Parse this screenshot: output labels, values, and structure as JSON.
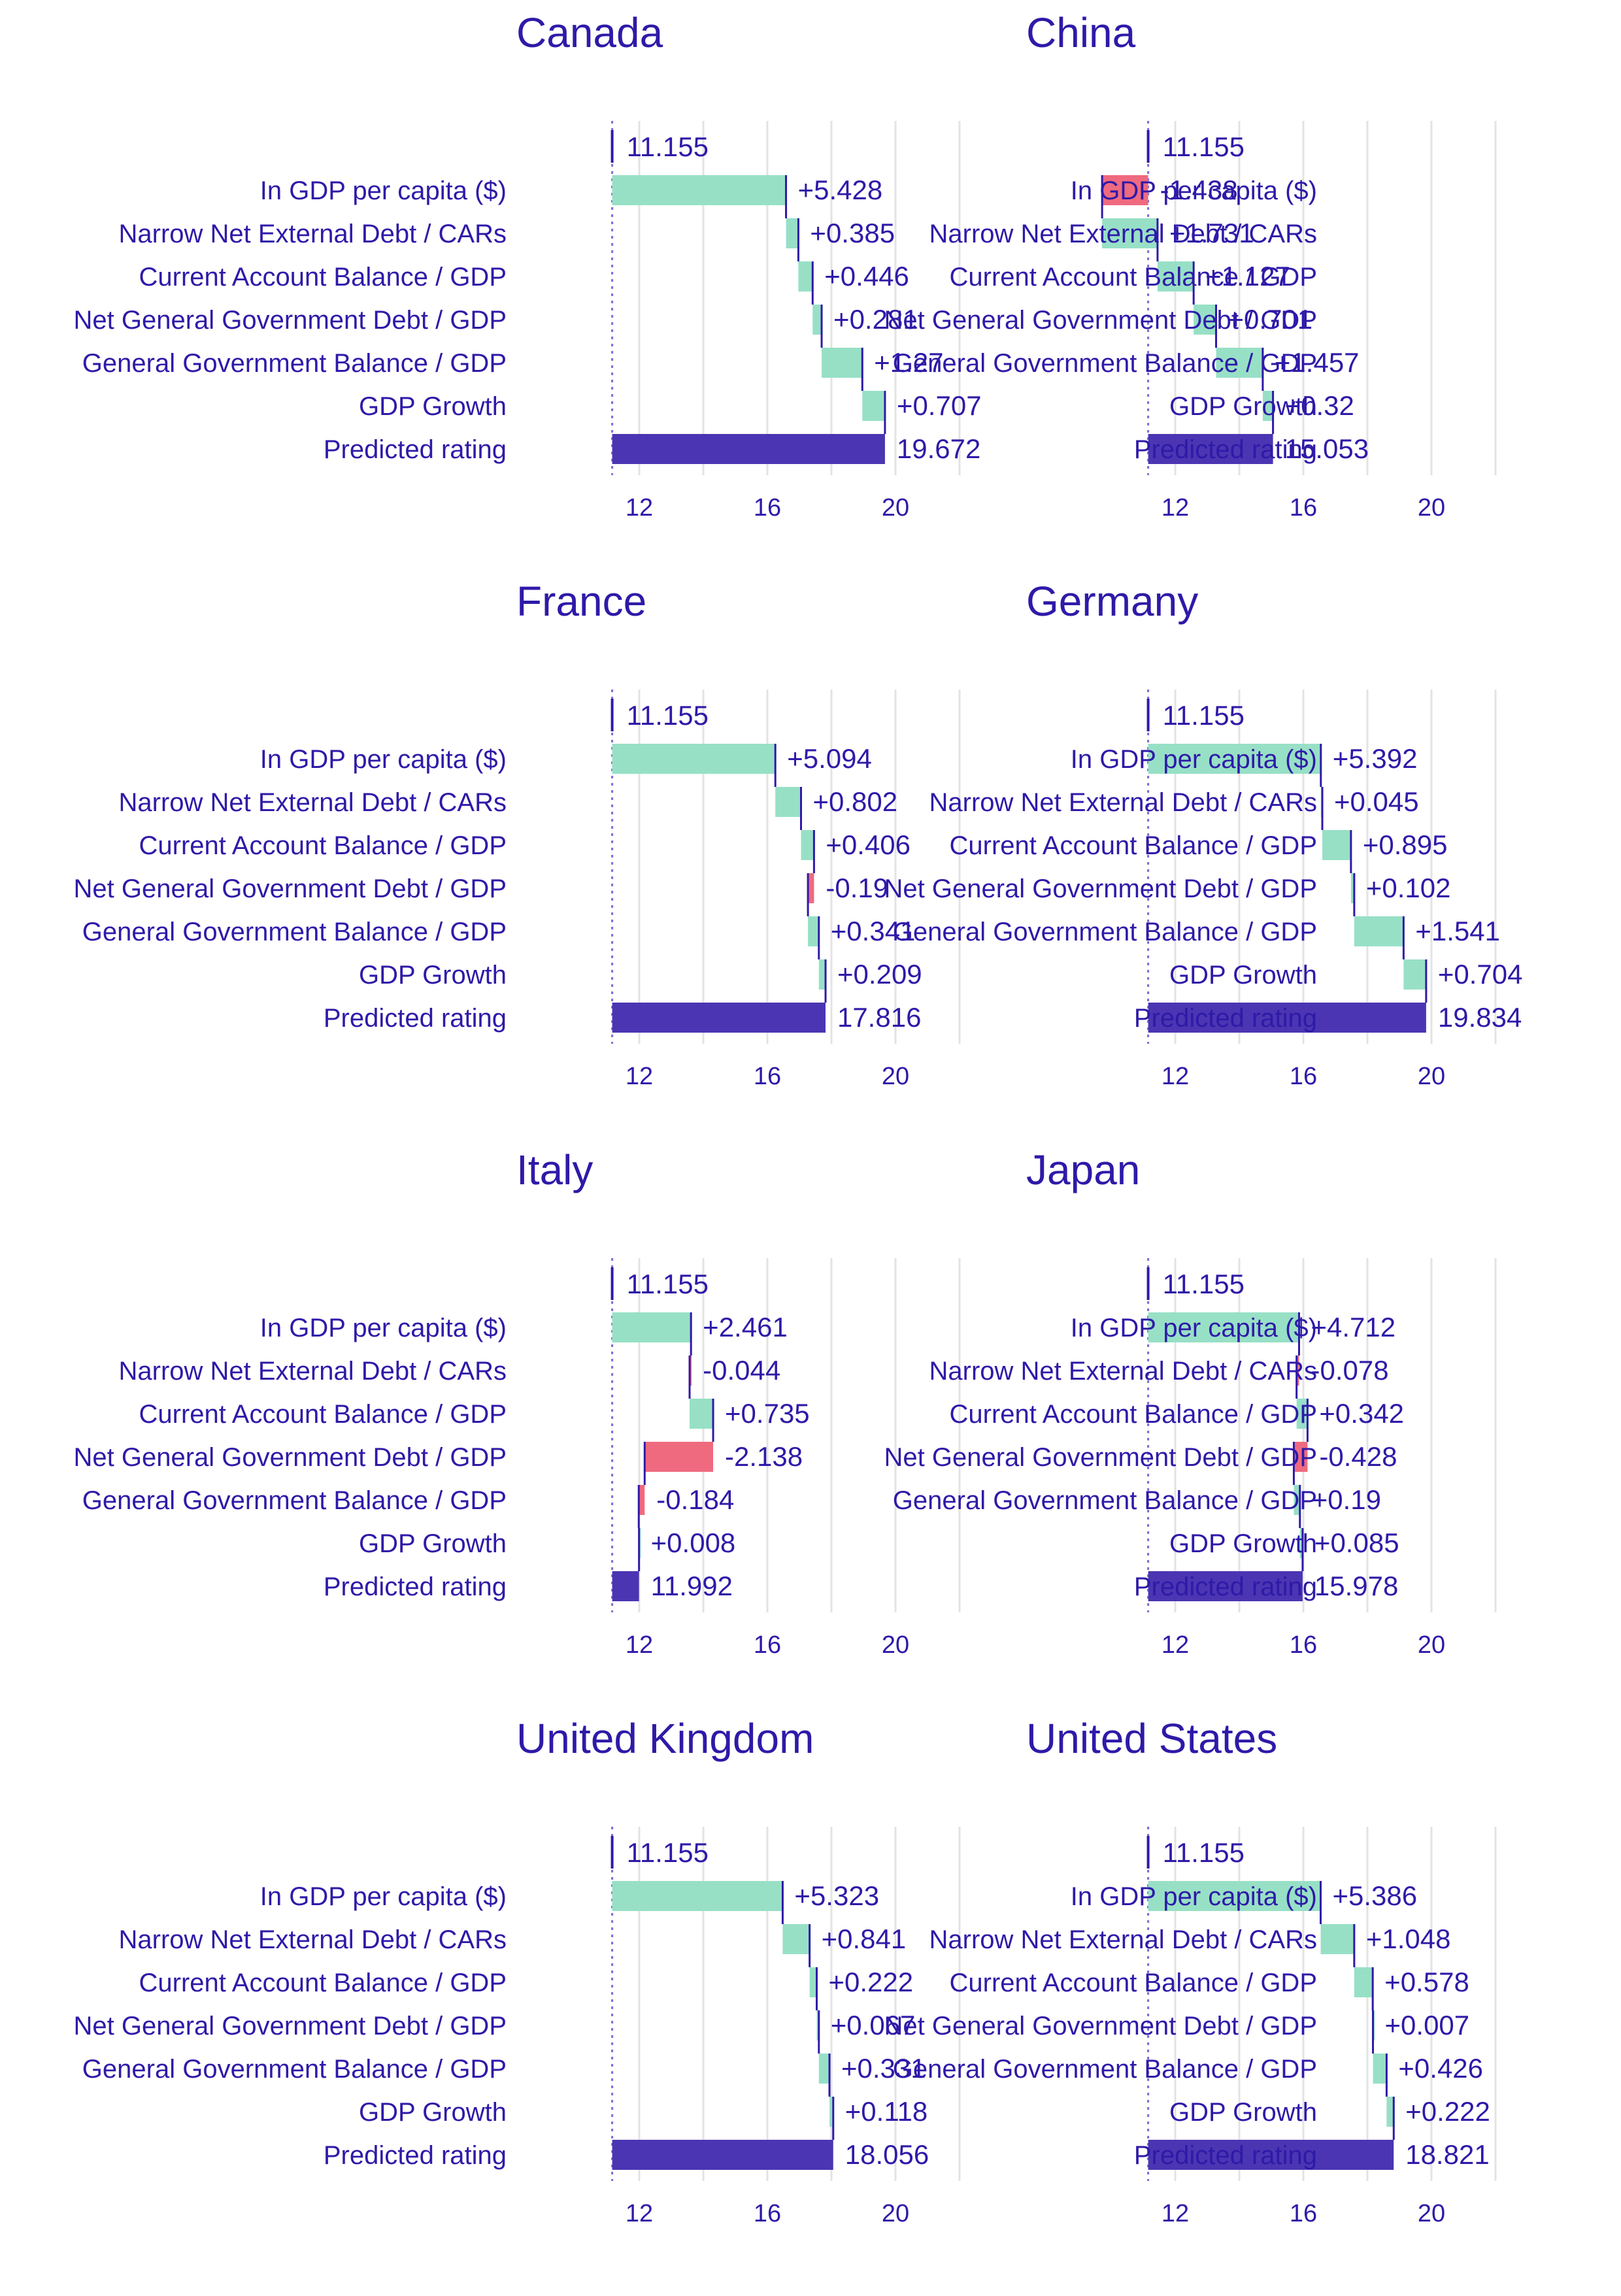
{
  "colors": {
    "text": "#2e1aa8",
    "positive": "#97e0c6",
    "negative": "#ef6a7f",
    "total": "#4b35b2",
    "start_line": "#2e1aa8",
    "grid": "#e3e3e3",
    "baseline_dotted": "#7a6fd6"
  },
  "chart_data": [
    {
      "type": "waterfall",
      "title": "Canada",
      "features": [
        "In GDP per capita ($)",
        "Narrow Net External Debt / CARs",
        "Current Account Balance / GDP",
        "Net General Government Debt / GDP",
        "General Government Balance / GDP",
        "GDP Growth"
      ],
      "start": 11.155,
      "start_label": "11.155",
      "contributions": [
        5.428,
        0.385,
        0.446,
        0.281,
        1.27,
        0.707
      ],
      "contribution_labels": [
        "+5.428",
        "+0.385",
        "+0.446",
        "+0.281",
        "+1.27",
        "+0.707"
      ],
      "total_label": "Predicted rating",
      "total": 19.672,
      "total_text": "19.672",
      "xticks": [
        12,
        16,
        20
      ],
      "xtick_labels": [
        "12",
        "16",
        "20"
      ],
      "xlim": [
        10,
        23
      ],
      "grid": true
    },
    {
      "type": "waterfall",
      "title": "China",
      "features": [
        "In GDP per capita ($)",
        "Narrow Net External Debt / CARs",
        "Current Account Balance / GDP",
        "Net General Government Debt / GDP",
        "General Government Balance / GDP",
        "GDP Growth"
      ],
      "start": 11.155,
      "start_label": "11.155",
      "contributions": [
        -1.438,
        1.731,
        1.127,
        0.701,
        1.457,
        0.32
      ],
      "contribution_labels": [
        "-1.438",
        "+1.731",
        "+1.127",
        "+0.701",
        "+1.457",
        "+0.32"
      ],
      "total_label": "Predicted rating",
      "total": 15.053,
      "total_text": "15.053",
      "xticks": [
        12,
        16,
        20
      ],
      "xtick_labels": [
        "12",
        "16",
        "20"
      ],
      "xlim": [
        10,
        23
      ],
      "grid": true
    },
    {
      "type": "waterfall",
      "title": "France",
      "features": [
        "In GDP per capita ($)",
        "Narrow Net External Debt / CARs",
        "Current Account Balance / GDP",
        "Net General Government Debt / GDP",
        "General Government Balance / GDP",
        "GDP Growth"
      ],
      "start": 11.155,
      "start_label": "11.155",
      "contributions": [
        5.094,
        0.802,
        0.406,
        -0.19,
        0.341,
        0.209
      ],
      "contribution_labels": [
        "+5.094",
        "+0.802",
        "+0.406",
        "-0.19",
        "+0.341",
        "+0.209"
      ],
      "total_label": "Predicted rating",
      "total": 17.816,
      "total_text": "17.816",
      "xticks": [
        12,
        16,
        20
      ],
      "xtick_labels": [
        "12",
        "16",
        "20"
      ],
      "xlim": [
        10,
        23
      ],
      "grid": true
    },
    {
      "type": "waterfall",
      "title": "Germany",
      "features": [
        "In GDP per capita ($)",
        "Narrow Net External Debt / CARs",
        "Current Account Balance / GDP",
        "Net General Government Debt / GDP",
        "General Government Balance / GDP",
        "GDP Growth"
      ],
      "start": 11.155,
      "start_label": "11.155",
      "contributions": [
        5.392,
        0.045,
        0.895,
        0.102,
        1.541,
        0.704
      ],
      "contribution_labels": [
        "+5.392",
        "+0.045",
        "+0.895",
        "+0.102",
        "+1.541",
        "+0.704"
      ],
      "total_label": "Predicted rating",
      "total": 19.834,
      "total_text": "19.834",
      "xticks": [
        12,
        16,
        20
      ],
      "xtick_labels": [
        "12",
        "16",
        "20"
      ],
      "xlim": [
        10,
        23
      ],
      "grid": true
    },
    {
      "type": "waterfall",
      "title": "Italy",
      "features": [
        "In GDP per capita ($)",
        "Narrow Net External Debt / CARs",
        "Current Account Balance / GDP",
        "Net General Government Debt / GDP",
        "General Government Balance / GDP",
        "GDP Growth"
      ],
      "start": 11.155,
      "start_label": "11.155",
      "contributions": [
        2.461,
        -0.044,
        0.735,
        -2.138,
        -0.184,
        0.008
      ],
      "contribution_labels": [
        "+2.461",
        "-0.044",
        "+0.735",
        "-2.138",
        "-0.184",
        "+0.008"
      ],
      "total_label": "Predicted rating",
      "total": 11.992,
      "total_text": "11.992",
      "xticks": [
        12,
        16,
        20
      ],
      "xtick_labels": [
        "12",
        "16",
        "20"
      ],
      "xlim": [
        10,
        23
      ],
      "grid": true
    },
    {
      "type": "waterfall",
      "title": "Japan",
      "features": [
        "In GDP per capita ($)",
        "Narrow Net External Debt / CARs",
        "Current Account Balance / GDP",
        "Net General Government Debt / GDP",
        "General Government Balance / GDP",
        "GDP Growth"
      ],
      "start": 11.155,
      "start_label": "11.155",
      "contributions": [
        4.712,
        -0.078,
        0.342,
        -0.428,
        0.19,
        0.085
      ],
      "contribution_labels": [
        "+4.712",
        "-0.078",
        "+0.342",
        "-0.428",
        "+0.19",
        "+0.085"
      ],
      "total_label": "Predicted rating",
      "total": 15.978,
      "total_text": "15.978",
      "xticks": [
        12,
        16,
        20
      ],
      "xtick_labels": [
        "12",
        "16",
        "20"
      ],
      "xlim": [
        10,
        23
      ],
      "grid": true
    },
    {
      "type": "waterfall",
      "title": "United Kingdom",
      "features": [
        "In GDP per capita ($)",
        "Narrow Net External Debt / CARs",
        "Current Account Balance / GDP",
        "Net General Government Debt / GDP",
        "General Government Balance / GDP",
        "GDP Growth"
      ],
      "start": 11.155,
      "start_label": "11.155",
      "contributions": [
        5.323,
        0.841,
        0.222,
        0.067,
        0.331,
        0.118
      ],
      "contribution_labels": [
        "+5.323",
        "+0.841",
        "+0.222",
        "+0.067",
        "+0.331",
        "+0.118"
      ],
      "total_label": "Predicted rating",
      "total": 18.056,
      "total_text": "18.056",
      "xticks": [
        12,
        16,
        20
      ],
      "xtick_labels": [
        "12",
        "16",
        "20"
      ],
      "xlim": [
        10,
        23
      ],
      "grid": true
    },
    {
      "type": "waterfall",
      "title": "United States",
      "features": [
        "In GDP per capita ($)",
        "Narrow Net External Debt / CARs",
        "Current Account Balance / GDP",
        "Net General Government Debt / GDP",
        "General Government Balance / GDP",
        "GDP Growth"
      ],
      "start": 11.155,
      "start_label": "11.155",
      "contributions": [
        5.386,
        1.048,
        0.578,
        0.007,
        0.426,
        0.222
      ],
      "contribution_labels": [
        "+5.386",
        "+1.048",
        "+0.578",
        "+0.007",
        "+0.426",
        "+0.222"
      ],
      "total_label": "Predicted rating",
      "total": 18.821,
      "total_text": "18.821",
      "xticks": [
        12,
        16,
        20
      ],
      "xtick_labels": [
        "12",
        "16",
        "20"
      ],
      "xlim": [
        10,
        23
      ],
      "grid": true
    }
  ]
}
